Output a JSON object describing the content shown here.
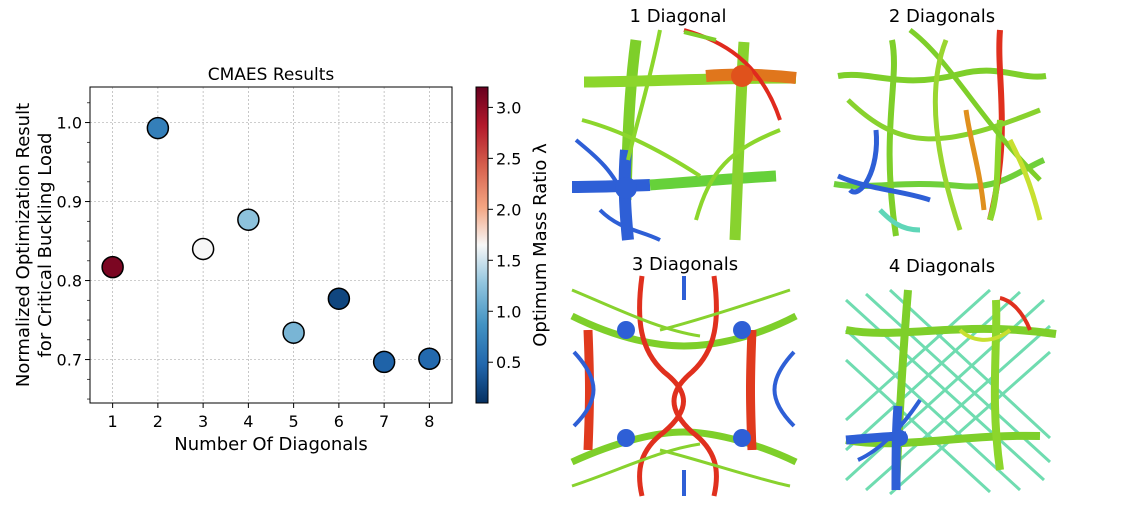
{
  "chart_data": {
    "type": "scatter",
    "title": "CMAES Results",
    "xlabel": "Number Of Diagonals",
    "ylabel_lines": [
      "Normalized Optimization Result",
      "for Critical Buckling Load"
    ],
    "xlim": [
      0.5,
      8.5
    ],
    "ylim": [
      0.645,
      1.045
    ],
    "x_ticks": [
      "1",
      "2",
      "3",
      "4",
      "5",
      "6",
      "7",
      "8"
    ],
    "y_ticks": [
      "0.7",
      "0.8",
      "0.9",
      "1.0"
    ],
    "y_tick_values": [
      0.7,
      0.8,
      0.9,
      1.0
    ],
    "grid": true,
    "points": [
      {
        "x": 1,
        "y": 0.817,
        "ratio": 3.1
      },
      {
        "x": 2,
        "y": 0.993,
        "ratio": 0.7
      },
      {
        "x": 3,
        "y": 0.84,
        "ratio": 1.65
      },
      {
        "x": 4,
        "y": 0.877,
        "ratio": 1.25
      },
      {
        "x": 5,
        "y": 0.734,
        "ratio": 1.15
      },
      {
        "x": 6,
        "y": 0.777,
        "ratio": 0.25
      },
      {
        "x": 7,
        "y": 0.697,
        "ratio": 0.45
      },
      {
        "x": 8,
        "y": 0.701,
        "ratio": 0.5
      }
    ],
    "colorbar": {
      "label": "Optimum Mass Ratio λ",
      "min": 0.1,
      "max": 3.2,
      "ticks": [
        "0.5",
        "1.0",
        "1.5",
        "2.0",
        "2.5",
        "3.0"
      ],
      "tick_values": [
        0.5,
        1.0,
        1.5,
        2.0,
        2.5,
        3.0
      ]
    }
  },
  "panels": [
    {
      "title": "1 Diagonal"
    },
    {
      "title": "2 Diagonals"
    },
    {
      "title": "3 Diagonals"
    },
    {
      "title": "4 Diagonals"
    }
  ]
}
